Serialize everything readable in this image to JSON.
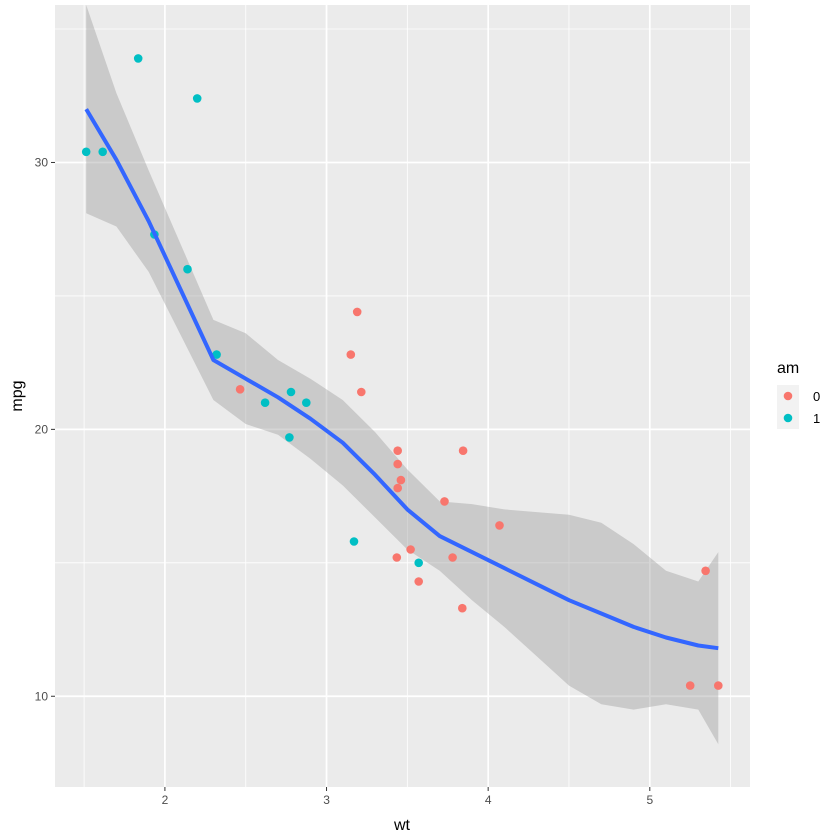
{
  "colors": {
    "panel": "#EBEBEB",
    "grid_major": "#FFFFFF",
    "smooth_line": "#3366FF",
    "ribbon": "#999999",
    "legend_key_bg": "#F2F2F2"
  },
  "chart_data": {
    "type": "scatter",
    "xlabel": "wt",
    "ylabel": "mpg",
    "xlim": [
      1.32,
      5.62
    ],
    "ylim": [
      6.6,
      35.9
    ],
    "x_ticks": [
      2,
      3,
      4,
      5
    ],
    "y_ticks": [
      10,
      20,
      30
    ],
    "grid": true,
    "legend": {
      "title": "am",
      "placement": "right",
      "entries": [
        {
          "label": "0",
          "color": "#F8766D"
        },
        {
          "label": "1",
          "color": "#00BFC4"
        }
      ]
    },
    "series": [
      {
        "name": "0",
        "color": "#F8766D",
        "points": [
          [
            3.215,
            21.4
          ],
          [
            3.44,
            18.7
          ],
          [
            3.46,
            18.1
          ],
          [
            3.57,
            14.3
          ],
          [
            3.19,
            24.4
          ],
          [
            3.15,
            22.8
          ],
          [
            3.44,
            19.2
          ],
          [
            3.44,
            17.8
          ],
          [
            4.07,
            16.4
          ],
          [
            3.73,
            17.3
          ],
          [
            3.78,
            15.2
          ],
          [
            5.25,
            10.4
          ],
          [
            5.424,
            10.4
          ],
          [
            5.345,
            14.7
          ],
          [
            2.465,
            21.5
          ],
          [
            3.52,
            15.5
          ],
          [
            3.435,
            15.2
          ],
          [
            3.84,
            13.3
          ],
          [
            3.845,
            19.2
          ]
        ]
      },
      {
        "name": "1",
        "color": "#00BFC4",
        "points": [
          [
            2.62,
            21.0
          ],
          [
            2.875,
            21.0
          ],
          [
            2.32,
            22.8
          ],
          [
            2.2,
            32.4
          ],
          [
            1.615,
            30.4
          ],
          [
            1.835,
            33.9
          ],
          [
            1.935,
            27.3
          ],
          [
            2.14,
            26.0
          ],
          [
            1.513,
            30.4
          ],
          [
            3.17,
            15.8
          ],
          [
            2.77,
            19.7
          ],
          [
            3.57,
            15.0
          ],
          [
            2.78,
            21.4
          ]
        ]
      }
    ],
    "smooth": {
      "method": "loess",
      "x": [
        1.513,
        1.7,
        1.9,
        2.1,
        2.3,
        2.5,
        2.7,
        2.9,
        3.1,
        3.3,
        3.5,
        3.7,
        3.9,
        4.1,
        4.3,
        4.5,
        4.7,
        4.9,
        5.1,
        5.3,
        5.424
      ],
      "y": [
        32.0,
        30.1,
        27.8,
        25.2,
        22.6,
        21.9,
        21.2,
        20.4,
        19.5,
        18.3,
        17.0,
        16.0,
        15.4,
        14.8,
        14.2,
        13.6,
        13.1,
        12.6,
        12.2,
        11.9,
        11.8
      ],
      "lower": [
        28.1,
        27.6,
        25.9,
        23.5,
        21.1,
        20.2,
        19.8,
        18.9,
        17.9,
        16.7,
        15.5,
        14.7,
        13.6,
        12.6,
        11.5,
        10.4,
        9.7,
        9.5,
        9.7,
        9.5,
        8.2
      ],
      "upper": [
        35.9,
        32.6,
        29.7,
        26.9,
        24.1,
        23.6,
        22.6,
        21.9,
        21.1,
        19.9,
        18.5,
        17.3,
        17.2,
        17.0,
        16.9,
        16.8,
        16.5,
        15.7,
        14.7,
        14.3,
        15.4
      ]
    }
  }
}
